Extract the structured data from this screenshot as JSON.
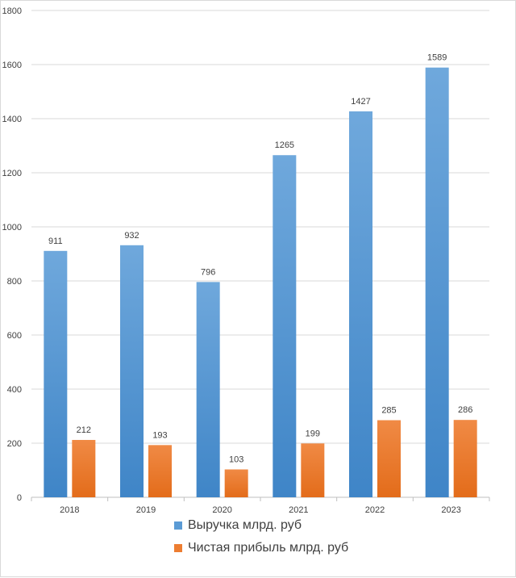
{
  "chart_data": {
    "type": "bar",
    "title": "",
    "xlabel": "",
    "ylabel": "",
    "categories": [
      "2018",
      "2019",
      "2020",
      "2021",
      "2022",
      "2023"
    ],
    "ylim": [
      0,
      1800
    ],
    "yticks": [
      0,
      200,
      400,
      600,
      800,
      1000,
      1200,
      1400,
      1600,
      1800
    ],
    "grid": true,
    "legend_position": "bottom",
    "series": [
      {
        "name": "Выручка млрд. руб",
        "color": "#4a90d9",
        "values": [
          911,
          932,
          796,
          1265,
          1427,
          1589
        ]
      },
      {
        "name": "Чистая прибыль млрд. руб",
        "color": "#ed7d31",
        "values": [
          212,
          193,
          103,
          199,
          285,
          286
        ]
      }
    ]
  }
}
